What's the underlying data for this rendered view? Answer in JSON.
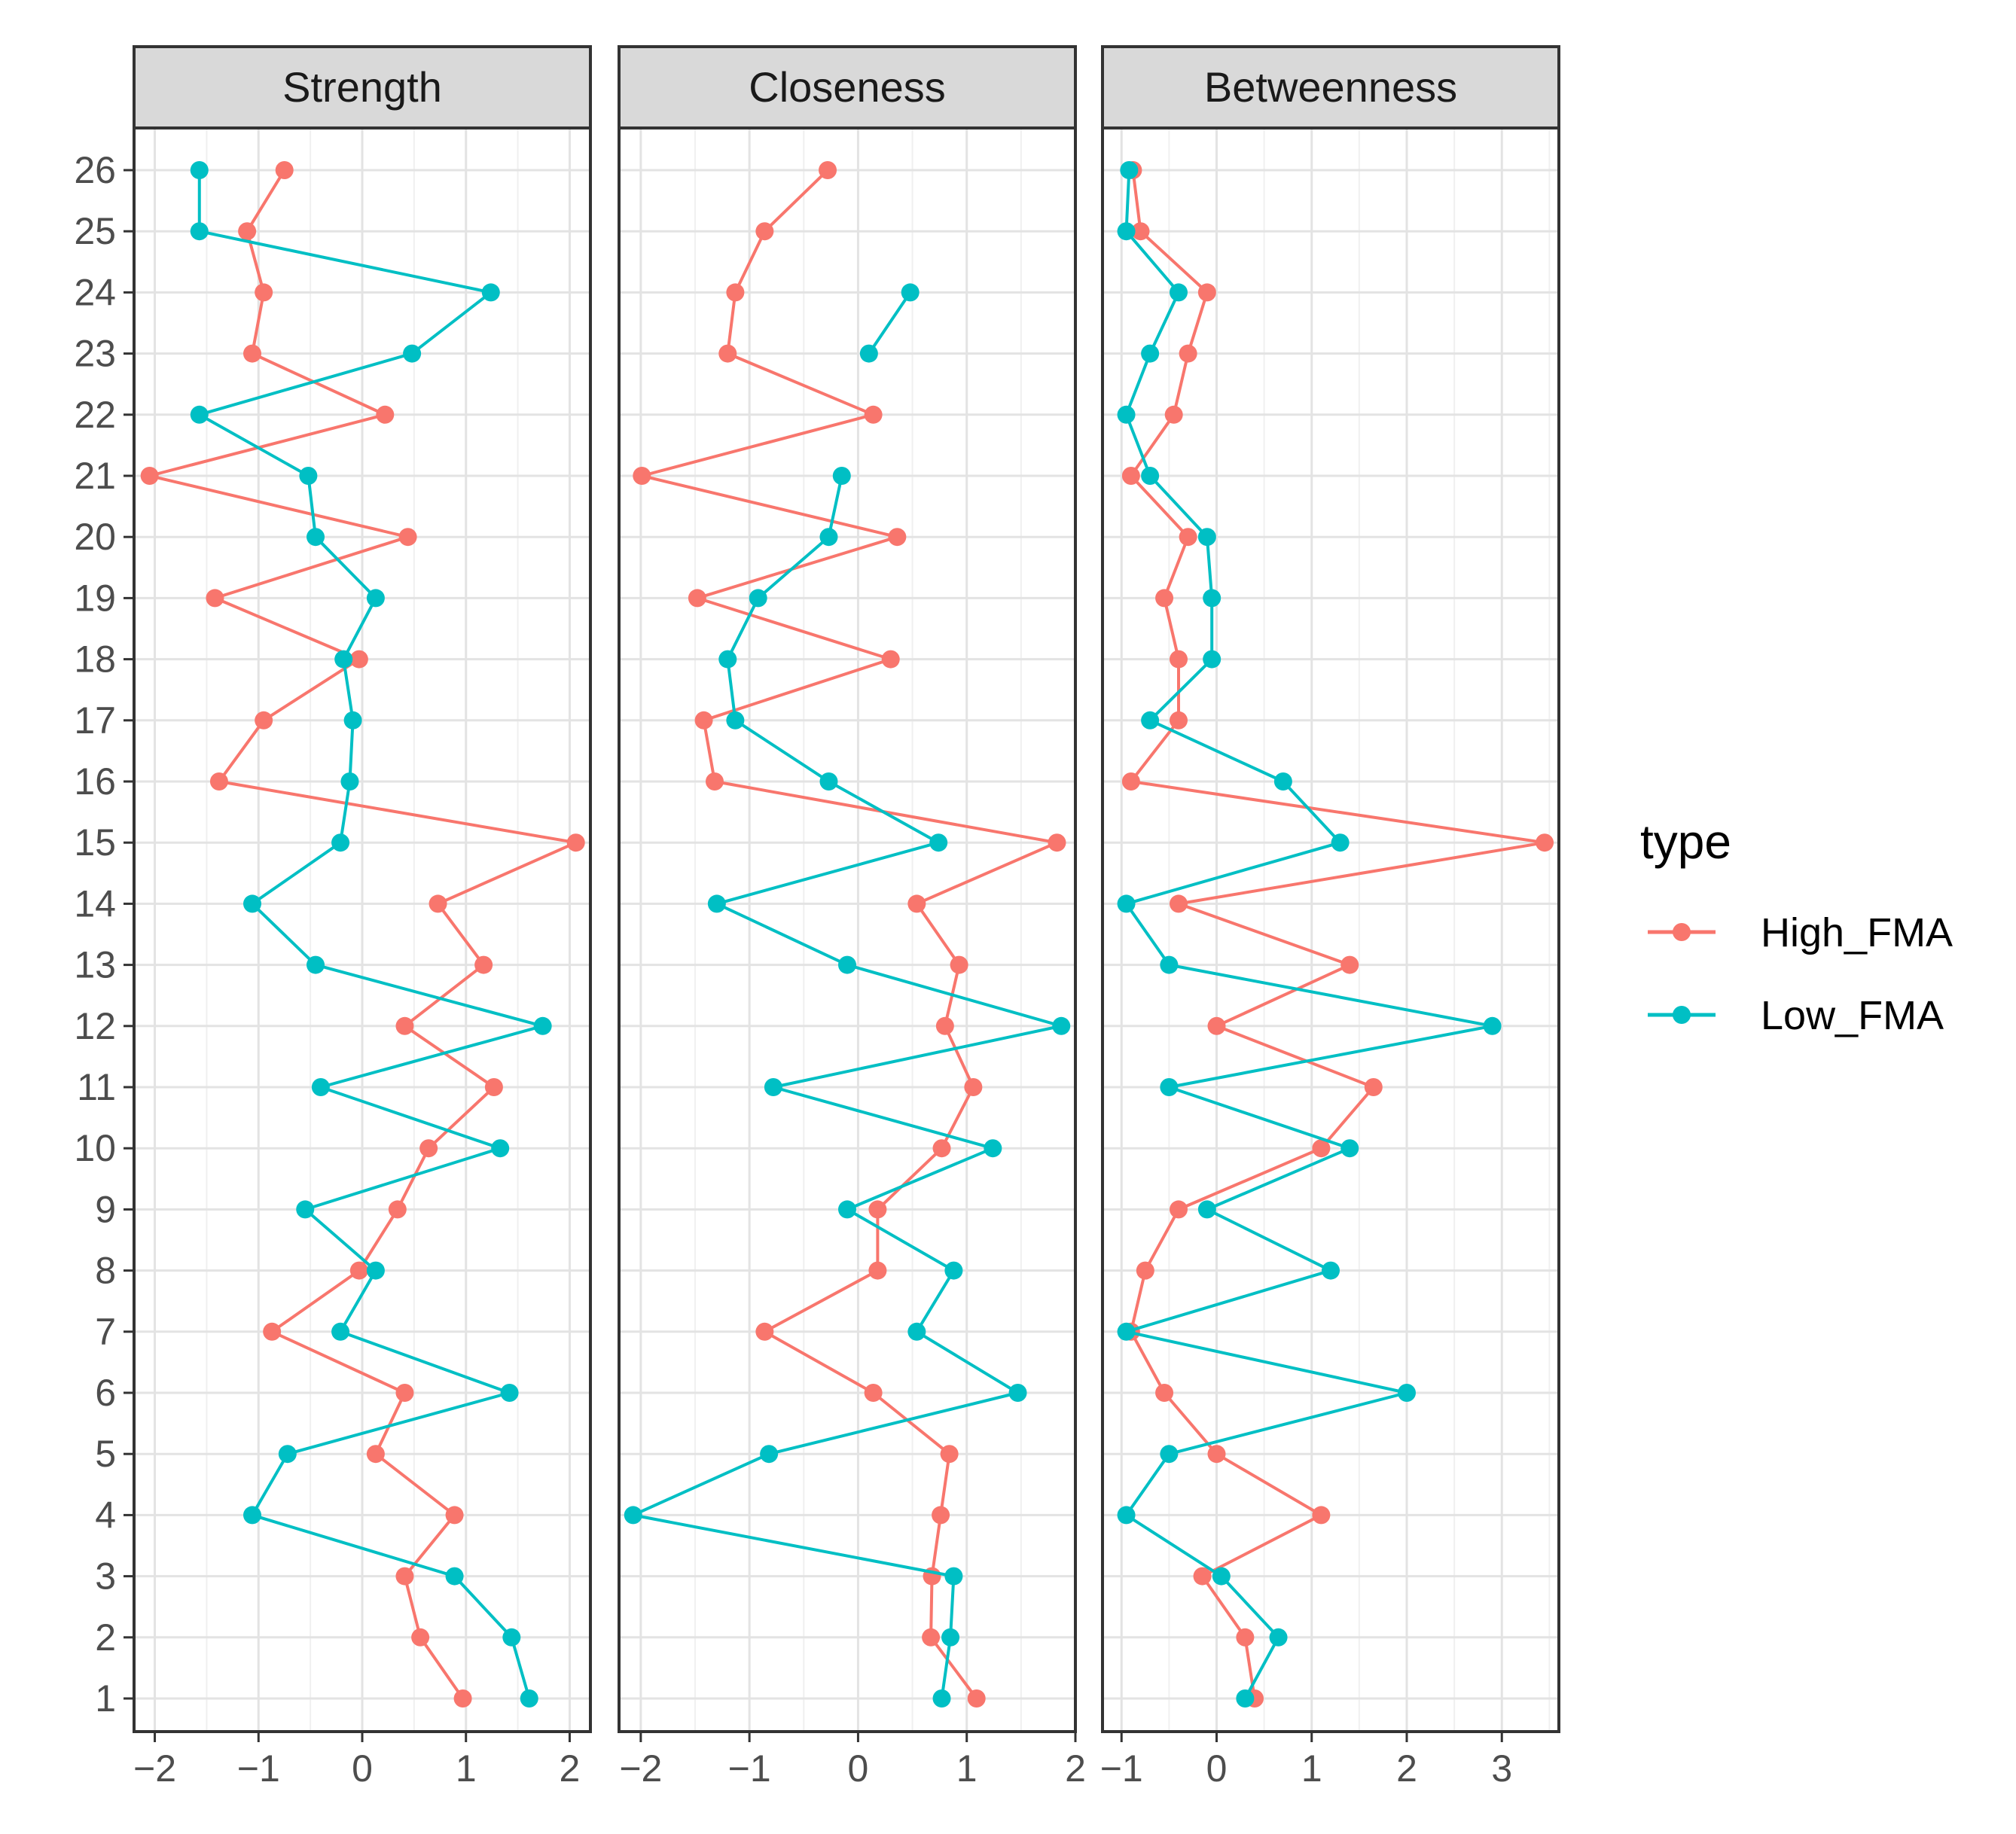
{
  "chart_data": {
    "type": "line",
    "orientation": "horizontal-values-vertical-categories",
    "y_categories": [
      "1",
      "2",
      "3",
      "4",
      "5",
      "6",
      "7",
      "8",
      "9",
      "10",
      "11",
      "12",
      "13",
      "14",
      "15",
      "16",
      "17",
      "18",
      "19",
      "20",
      "21",
      "22",
      "23",
      "24",
      "25",
      "26"
    ],
    "legend": {
      "title": "type",
      "position": "right",
      "entries": [
        {
          "name": "High_FMA",
          "color": "#F8766D"
        },
        {
          "name": "Low_FMA",
          "color": "#00BFC4"
        }
      ]
    },
    "panels": [
      {
        "title": "Strength",
        "xlim": [
          -2.2,
          2.2
        ],
        "xticks": [
          -2,
          -1,
          0,
          1,
          2
        ],
        "xtick_labels": [
          "−2",
          "−1",
          "0",
          "1",
          "2"
        ],
        "series": [
          {
            "name": "High_FMA",
            "segments": [
              [
                0.97,
                0.56,
                0.41,
                0.89,
                0.13,
                0.41,
                -0.87,
                -0.03,
                0.34,
                0.64,
                1.27,
                0.41,
                1.17,
                0.73,
                2.06,
                -1.38,
                -0.95,
                -0.03,
                -1.42,
                0.44,
                -2.05,
                0.22,
                -1.06,
                -0.95,
                -1.11,
                -0.75
              ]
            ]
          },
          {
            "name": "Low_FMA",
            "segments": [
              [
                1.61,
                1.44,
                0.89,
                -1.06,
                -0.72,
                1.42,
                -0.21,
                0.13,
                -0.55,
                1.33,
                -0.4,
                1.74,
                -0.45,
                -1.06,
                -0.21,
                -0.12,
                -0.09,
                -0.18,
                0.13,
                -0.45,
                -0.52,
                -1.57,
                0.48,
                1.24,
                -1.57,
                -1.57
              ]
            ]
          }
        ]
      },
      {
        "title": "Closeness",
        "xlim": [
          -2.2,
          2.0
        ],
        "xticks": [
          -2,
          -1,
          0,
          1,
          2
        ],
        "xtick_labels": [
          "−2",
          "−1",
          "0",
          "1",
          "2"
        ],
        "series": [
          {
            "name": "High_FMA",
            "segments": [
              [
                1.09,
                0.67,
                0.68,
                0.76,
                0.84,
                0.14,
                -0.86,
                0.18,
                0.18,
                0.77,
                1.06,
                0.8,
                0.93,
                0.54,
                1.83,
                -1.32,
                -1.42,
                0.3,
                -1.48,
                0.36,
                -1.99,
                0.14,
                -1.2,
                -1.13,
                -0.86,
                -0.28
              ]
            ]
          },
          {
            "name": "Low_FMA",
            "segments": [
              [
                0.77,
                0.85,
                0.88,
                -2.07,
                -0.82,
                1.47,
                0.54,
                0.88,
                -0.1,
                1.24,
                -0.78,
                1.87,
                -0.1,
                -1.3,
                0.74,
                -0.27,
                -1.13,
                -1.2,
                -0.92,
                -0.27,
                -0.15
              ],
              {
                "start_index": 22,
                "values": [
                  0.1,
                  0.48
                ]
              }
            ]
          }
        ]
      },
      {
        "title": "Betweenness",
        "xlim": [
          -1.2,
          3.6
        ],
        "xticks": [
          -1,
          0,
          1,
          2,
          3
        ],
        "xtick_labels": [
          "−1",
          "0",
          "1",
          "2",
          "3"
        ],
        "series": [
          {
            "name": "High_FMA",
            "segments": [
              [
                0.4,
                0.3,
                -0.15,
                1.1,
                0.0,
                -0.55,
                -0.9,
                -0.75,
                -0.4,
                1.1,
                1.65,
                0.0,
                1.4,
                -0.4,
                3.45,
                -0.9,
                -0.4,
                -0.4,
                -0.55,
                -0.3,
                -0.9,
                -0.45,
                -0.3,
                -0.1,
                -0.8,
                -0.88
              ]
            ]
          },
          {
            "name": "Low_FMA",
            "segments": [
              [
                0.3,
                0.65,
                0.05,
                -0.95,
                -0.5,
                2.0,
                -0.95,
                1.2,
                -0.1,
                1.4,
                -0.5,
                2.9,
                -0.5,
                -0.95,
                1.3,
                0.7,
                -0.7,
                -0.05,
                -0.05,
                -0.1,
                -0.7,
                -0.95,
                -0.7,
                -0.4,
                -0.95,
                -0.92
              ]
            ]
          }
        ]
      }
    ]
  }
}
